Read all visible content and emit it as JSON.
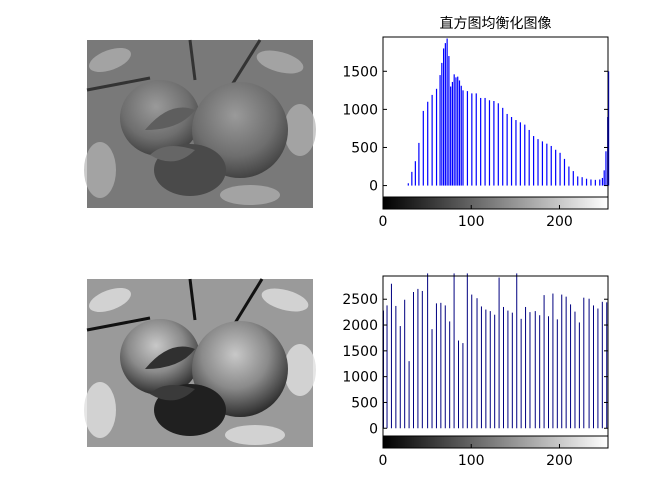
{
  "figure": {
    "background": "#ffffff",
    "images": [
      {
        "subject": "apple-photo-grayscale-original"
      },
      {
        "subject": "apple-photo-grayscale-equalized"
      }
    ]
  },
  "chart_data": [
    {
      "type": "bar",
      "title": "直方图均衡化图像",
      "xlabel": "",
      "ylabel": "",
      "xlim": [
        0,
        255
      ],
      "ylim": [
        -150,
        1950
      ],
      "yticks": [
        0,
        500,
        1000,
        1500
      ],
      "xticks": [
        0,
        100,
        200
      ],
      "color": "#0000ff",
      "colorbar": "grayscale",
      "x": [
        0,
        10,
        20,
        25,
        28,
        32,
        36,
        40,
        45,
        50,
        55,
        60,
        64,
        66,
        68,
        70,
        72,
        74,
        76,
        78,
        80,
        82,
        84,
        86,
        88,
        90,
        95,
        100,
        105,
        110,
        115,
        120,
        125,
        130,
        135,
        140,
        145,
        150,
        155,
        160,
        165,
        170,
        175,
        180,
        185,
        190,
        195,
        200,
        205,
        210,
        215,
        220,
        225,
        230,
        235,
        240,
        245,
        248,
        250,
        252,
        254,
        255
      ],
      "values": [
        0,
        0,
        0,
        0,
        30,
        180,
        320,
        560,
        980,
        1100,
        1190,
        1270,
        1450,
        1610,
        1800,
        1870,
        1930,
        1700,
        1300,
        1360,
        1460,
        1420,
        1430,
        1380,
        1310,
        1250,
        1240,
        1210,
        1210,
        1150,
        1150,
        1120,
        1110,
        1080,
        1020,
        940,
        900,
        860,
        830,
        800,
        730,
        650,
        610,
        580,
        550,
        520,
        470,
        430,
        350,
        250,
        190,
        120,
        110,
        90,
        80,
        75,
        80,
        100,
        200,
        450,
        900,
        1500
      ]
    },
    {
      "type": "bar",
      "title": "",
      "xlabel": "",
      "ylabel": "",
      "xlim": [
        0,
        255
      ],
      "ylim": [
        -150,
        2950
      ],
      "yticks": [
        0,
        500,
        1000,
        1500,
        2000,
        2500
      ],
      "xticks": [
        0,
        100,
        200
      ],
      "color": "#000080",
      "colorbar": "grayscale",
      "x": [
        0,
        4,
        9,
        14,
        19,
        24,
        29,
        34,
        39,
        44,
        50,
        55,
        60,
        65,
        70,
        75,
        80,
        85,
        90,
        95,
        100,
        106,
        111,
        116,
        121,
        126,
        131,
        136,
        141,
        146,
        151,
        156,
        161,
        166,
        172,
        177,
        182,
        187,
        192,
        197,
        202,
        207,
        212,
        217,
        222,
        227,
        233,
        238,
        243,
        248,
        253
      ],
      "values": [
        2280,
        2380,
        2800,
        2370,
        1980,
        2490,
        1300,
        2640,
        2700,
        2660,
        3000,
        1920,
        2420,
        2430,
        2380,
        2070,
        3000,
        1700,
        1650,
        3000,
        2590,
        2520,
        2360,
        2300,
        2270,
        2200,
        2920,
        2350,
        2280,
        2240,
        3000,
        2120,
        2350,
        2250,
        2270,
        2190,
        2580,
        2170,
        2610,
        2110,
        2590,
        2550,
        2400,
        2260,
        2050,
        2530,
        2510,
        2380,
        2320,
        2450,
        2440
      ]
    }
  ]
}
